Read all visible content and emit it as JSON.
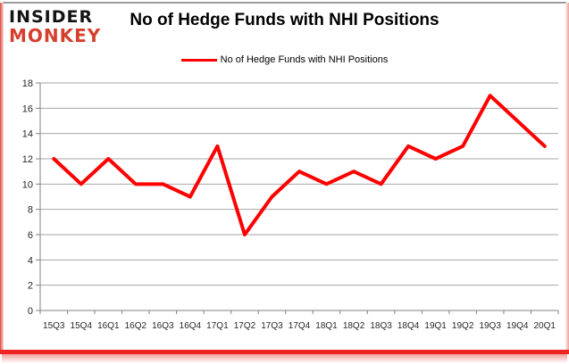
{
  "logo": {
    "line1": "INSIDER",
    "line2": "MONKEY",
    "accent_color": "#d5402e"
  },
  "header": {
    "title": "No of Hedge Funds with NHI Positions"
  },
  "legend": {
    "label": "No of Hedge Funds with NHI Positions",
    "line_color": "#ff0000"
  },
  "chart_data": {
    "type": "line",
    "title": "No of Hedge Funds with NHI Positions",
    "categories": [
      "15Q3",
      "15Q4",
      "16Q1",
      "16Q2",
      "16Q3",
      "16Q4",
      "17Q1",
      "17Q2",
      "17Q3",
      "17Q4",
      "18Q1",
      "18Q2",
      "18Q3",
      "18Q4",
      "19Q1",
      "19Q2",
      "19Q3",
      "19Q4",
      "20Q1"
    ],
    "series": [
      {
        "name": "No of Hedge Funds with NHI Positions",
        "color": "#ff0000",
        "values": [
          12,
          10,
          12,
          10,
          10,
          9,
          13,
          6,
          9,
          11,
          10,
          11,
          10,
          13,
          12,
          13,
          17,
          15,
          13
        ]
      }
    ],
    "xlabel": "",
    "ylabel": "",
    "ylim": [
      0,
      18
    ],
    "ytick_step": 2,
    "grid": true,
    "gridline_color": "#a6a6a6",
    "axis_color": "#808080",
    "tick_label_color": "#262626",
    "legend_position": "top",
    "line_width": 4
  },
  "frame": {
    "border_red": "#ee2424",
    "border_top_gray": "#9a9a9a"
  }
}
